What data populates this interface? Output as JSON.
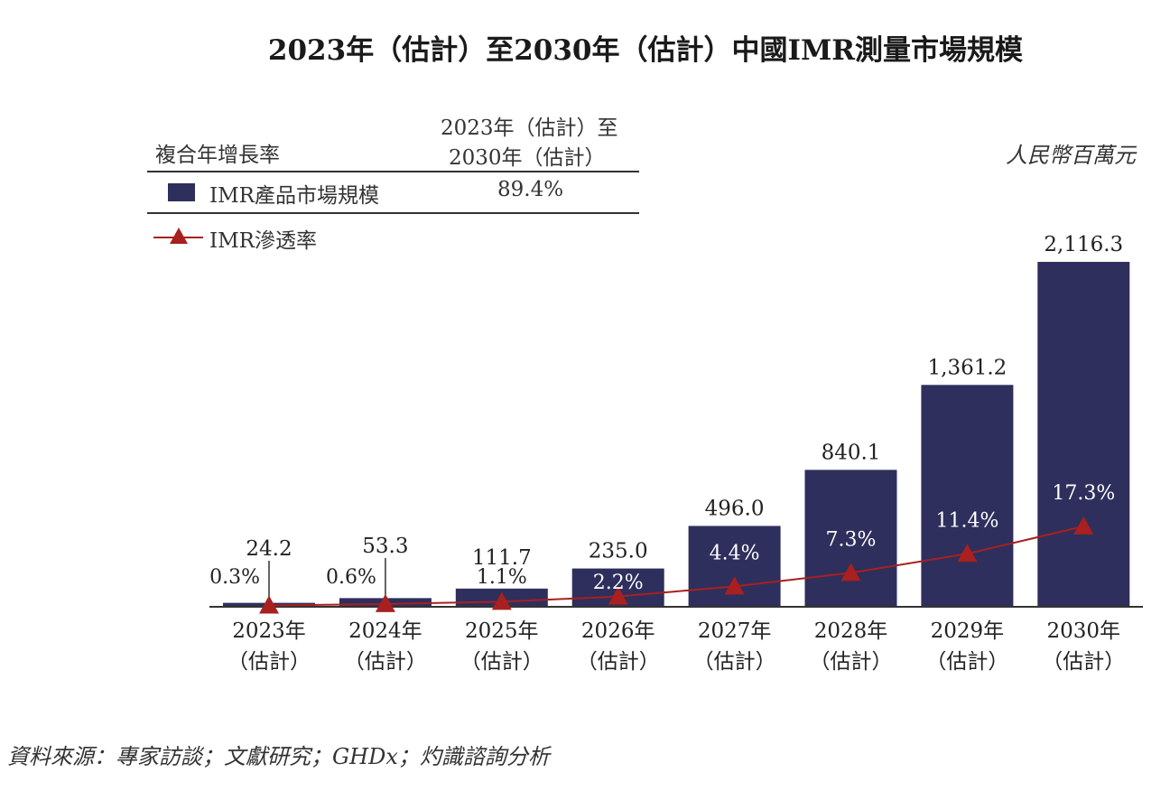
{
  "title": "2023年（估計）至2030年（估計）中國IMR測量市場規模",
  "unit": "人民幣百萬元",
  "source": "資料來源：專家訪談；文獻研究；GHDx；灼識諮詢分析",
  "legend_table": {
    "header_label": "複合年增長率",
    "header_period_line1": "2023年（估計）至",
    "header_period_line2": "2030年（估計）",
    "rows": [
      {
        "label": "IMR產品市場規模",
        "value": "89.4%",
        "marker": "square"
      },
      {
        "label": "IMR滲透率",
        "value": "",
        "marker": "line-triangle"
      }
    ]
  },
  "colors": {
    "bar": "#2e2f5c",
    "line": "#a8201f"
  },
  "chart_data": {
    "type": "bar",
    "title": "2023年（估計）至2030年（估計）中國IMR測量市場規模",
    "ylabel": "人民幣百萬元",
    "grid": false,
    "legend": "top-left",
    "categories": [
      {
        "year": "2023年",
        "note": "（估計）"
      },
      {
        "year": "2024年",
        "note": "（估計）"
      },
      {
        "year": "2025年",
        "note": "（估計）"
      },
      {
        "year": "2026年",
        "note": "（估計）"
      },
      {
        "year": "2027年",
        "note": "（估計）"
      },
      {
        "year": "2028年",
        "note": "（估計）"
      },
      {
        "year": "2029年",
        "note": "（估計）"
      },
      {
        "year": "2030年",
        "note": "（估計）"
      }
    ],
    "series": [
      {
        "name": "IMR產品市場規模",
        "type": "bar",
        "values": [
          24.2,
          53.3,
          111.7,
          235.0,
          496.0,
          840.1,
          1361.2,
          2116.3
        ],
        "labels": [
          "24.2",
          "53.3",
          "111.7",
          "235.0",
          "496.0",
          "840.1",
          "1,361.2",
          "2,116.3"
        ]
      },
      {
        "name": "IMR滲透率",
        "type": "line",
        "values": [
          0.3,
          0.6,
          1.1,
          2.2,
          4.4,
          7.3,
          11.4,
          17.3
        ],
        "labels": [
          "0.3%",
          "0.6%",
          "1.1%",
          "2.2%",
          "4.4%",
          "7.3%",
          "11.4%",
          "17.3%"
        ]
      }
    ]
  }
}
